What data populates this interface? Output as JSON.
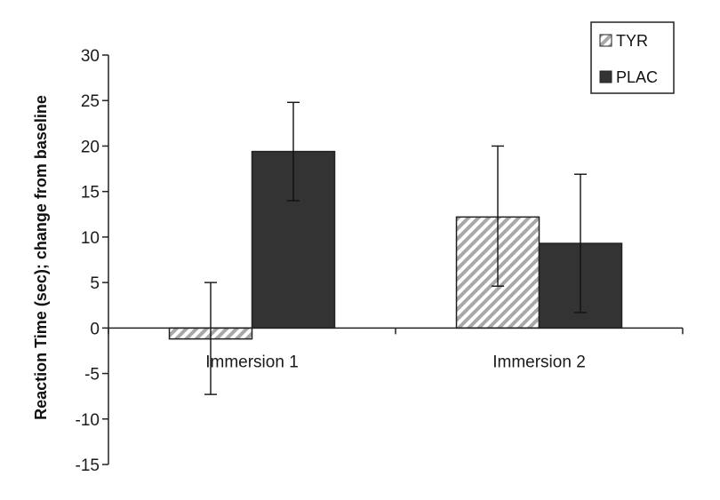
{
  "chart_data": {
    "type": "bar",
    "title": "",
    "xlabel": "",
    "ylabel": "Reaction Time (sec); change from baseline",
    "ylim": [
      -15,
      30
    ],
    "yticks": [
      30,
      25,
      20,
      15,
      10,
      5,
      0,
      -5,
      -10,
      -15
    ],
    "categories": [
      "Immersion 1",
      "Immersion 2"
    ],
    "series": [
      {
        "name": "TYR",
        "pattern": "hatched",
        "color": "#b8b8b8",
        "values": [
          -1.2,
          12.2
        ],
        "error_low": [
          -7.3,
          4.6
        ],
        "error_high": [
          5.0,
          20.0
        ]
      },
      {
        "name": "PLAC",
        "pattern": "solid",
        "color": "#333333",
        "values": [
          19.4,
          9.3
        ],
        "error_low": [
          14.0,
          1.7
        ],
        "error_high": [
          24.8,
          16.9
        ]
      }
    ],
    "legend": {
      "position": "top-right"
    },
    "grid": false
  }
}
